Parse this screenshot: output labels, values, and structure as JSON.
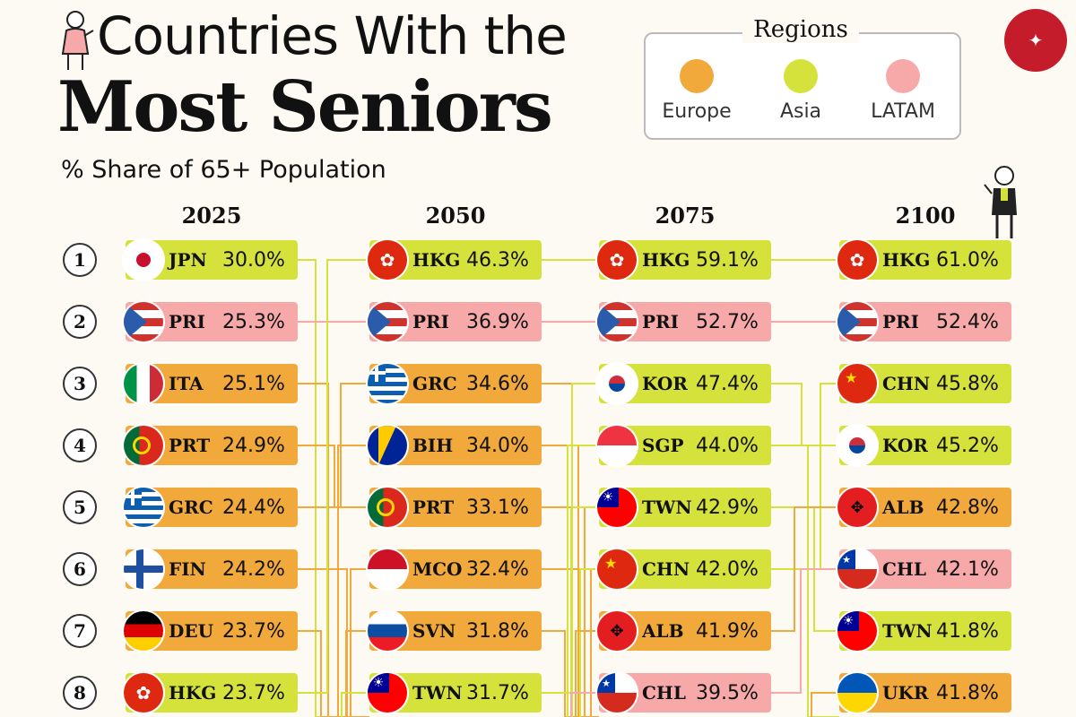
{
  "title": {
    "line1": "Countries With the",
    "line2": "Most Seniors"
  },
  "subtitle": "% Share of 65+ Population",
  "legend": {
    "title": "Regions",
    "items": [
      {
        "label": "Europe",
        "color": "#f2a93b"
      },
      {
        "label": "Asia",
        "color": "#d6e23c"
      },
      {
        "label": "LATAM",
        "color": "#f7a9a9"
      }
    ]
  },
  "colors": {
    "Europe": "#f2a93b",
    "Asia": "#d6e23c",
    "LATAM": "#f7a9a9"
  },
  "chart_data": {
    "type": "table",
    "title": "Countries With the Most Seniors",
    "subtitle": "% Share of 65+ Population",
    "ranks": [
      "1",
      "2",
      "3",
      "4",
      "5",
      "6",
      "7",
      "8"
    ],
    "columns": [
      {
        "year": "2025",
        "rows": [
          {
            "code": "JPN",
            "value": "30.0%",
            "region": "Asia",
            "flag": "jpn"
          },
          {
            "code": "PRI",
            "value": "25.3%",
            "region": "LATAM",
            "flag": "pri"
          },
          {
            "code": "ITA",
            "value": "25.1%",
            "region": "Europe",
            "flag": "ita"
          },
          {
            "code": "PRT",
            "value": "24.9%",
            "region": "Europe",
            "flag": "prt"
          },
          {
            "code": "GRC",
            "value": "24.4%",
            "region": "Europe",
            "flag": "grc"
          },
          {
            "code": "FIN",
            "value": "24.2%",
            "region": "Europe",
            "flag": "fin"
          },
          {
            "code": "DEU",
            "value": "23.7%",
            "region": "Europe",
            "flag": "deu"
          },
          {
            "code": "HKG",
            "value": "23.7%",
            "region": "Asia",
            "flag": "hkg"
          }
        ]
      },
      {
        "year": "2050",
        "rows": [
          {
            "code": "HKG",
            "value": "46.3%",
            "region": "Asia",
            "flag": "hkg"
          },
          {
            "code": "PRI",
            "value": "36.9%",
            "region": "LATAM",
            "flag": "pri"
          },
          {
            "code": "GRC",
            "value": "34.6%",
            "region": "Europe",
            "flag": "grc"
          },
          {
            "code": "BIH",
            "value": "34.0%",
            "region": "Europe",
            "flag": "bih"
          },
          {
            "code": "PRT",
            "value": "33.1%",
            "region": "Europe",
            "flag": "prt"
          },
          {
            "code": "MCO",
            "value": "32.4%",
            "region": "Europe",
            "flag": "mco"
          },
          {
            "code": "SVN",
            "value": "31.8%",
            "region": "Europe",
            "flag": "svn"
          },
          {
            "code": "TWN",
            "value": "31.7%",
            "region": "Asia",
            "flag": "twn"
          }
        ]
      },
      {
        "year": "2075",
        "rows": [
          {
            "code": "HKG",
            "value": "59.1%",
            "region": "Asia",
            "flag": "hkg"
          },
          {
            "code": "PRI",
            "value": "52.7%",
            "region": "LATAM",
            "flag": "pri"
          },
          {
            "code": "KOR",
            "value": "47.4%",
            "region": "Asia",
            "flag": "kor"
          },
          {
            "code": "SGP",
            "value": "44.0%",
            "region": "Asia",
            "flag": "sgp"
          },
          {
            "code": "TWN",
            "value": "42.9%",
            "region": "Asia",
            "flag": "twn"
          },
          {
            "code": "CHN",
            "value": "42.0%",
            "region": "Asia",
            "flag": "chn"
          },
          {
            "code": "ALB",
            "value": "41.9%",
            "region": "Europe",
            "flag": "alb"
          },
          {
            "code": "CHL",
            "value": "39.5%",
            "region": "LATAM",
            "flag": "chl"
          }
        ]
      },
      {
        "year": "2100",
        "rows": [
          {
            "code": "HKG",
            "value": "61.0%",
            "region": "Asia",
            "flag": "hkg"
          },
          {
            "code": "PRI",
            "value": "52.4%",
            "region": "LATAM",
            "flag": "pri"
          },
          {
            "code": "CHN",
            "value": "45.8%",
            "region": "Asia",
            "flag": "chn"
          },
          {
            "code": "KOR",
            "value": "45.2%",
            "region": "Asia",
            "flag": "kor"
          },
          {
            "code": "ALB",
            "value": "42.8%",
            "region": "Europe",
            "flag": "alb"
          },
          {
            "code": "CHL",
            "value": "42.1%",
            "region": "LATAM",
            "flag": "chl"
          },
          {
            "code": "TWN",
            "value": "41.8%",
            "region": "Asia",
            "flag": "twn"
          },
          {
            "code": "UKR",
            "value": "41.8%",
            "region": "Europe",
            "flag": "ukr"
          }
        ]
      }
    ]
  }
}
